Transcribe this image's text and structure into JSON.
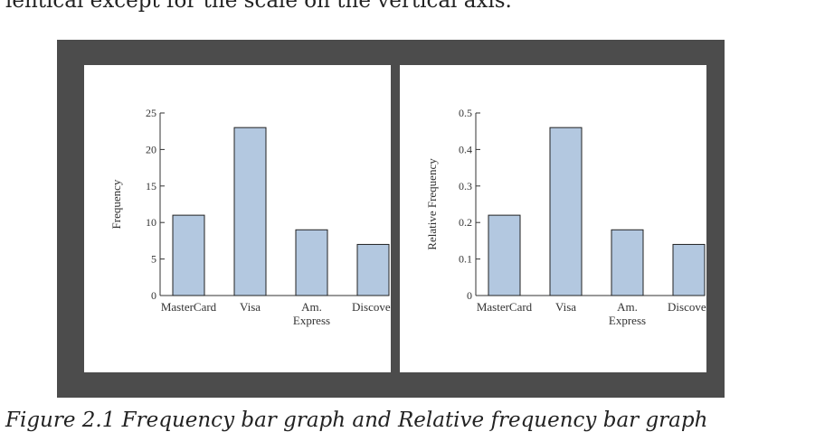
{
  "page": {
    "caption_top": "lentical except for the scale on the vertical axis.",
    "caption_bottom": "Figure 2.1 Frequency bar graph and Relative frequency bar graph"
  },
  "colors": {
    "bar": "#b3c8e0",
    "bar_stroke": "#222222",
    "frame": "#4c4c4c"
  },
  "chart_data": [
    {
      "type": "bar",
      "title": "",
      "xlabel": "",
      "ylabel": "Frequency",
      "categories": [
        "MasterCard",
        "Visa",
        "Am. Express",
        "Discover"
      ],
      "category_lines": [
        [
          "MasterCard"
        ],
        [
          "Visa"
        ],
        [
          "Am.",
          "Express"
        ],
        [
          "Discover"
        ]
      ],
      "values": [
        11,
        23,
        9,
        7
      ],
      "ylim": [
        0,
        25
      ],
      "yticks": [
        0,
        5,
        10,
        15,
        20,
        25
      ],
      "ytick_labels": [
        "0",
        "5",
        "10",
        "15",
        "20",
        "25"
      ],
      "grid": false
    },
    {
      "type": "bar",
      "title": "",
      "xlabel": "",
      "ylabel": "Relative Frequency",
      "categories": [
        "MasterCard",
        "Visa",
        "Am. Express",
        "Discover"
      ],
      "category_lines": [
        [
          "MasterCard"
        ],
        [
          "Visa"
        ],
        [
          "Am.",
          "Express"
        ],
        [
          "Discover"
        ]
      ],
      "values": [
        0.22,
        0.46,
        0.18,
        0.14
      ],
      "ylim": [
        0,
        0.5
      ],
      "yticks": [
        0,
        0.1,
        0.2,
        0.3,
        0.4,
        0.5
      ],
      "ytick_labels": [
        "0",
        "0.1",
        "0.2",
        "0.3",
        "0.4",
        "0.5"
      ],
      "grid": false
    }
  ]
}
